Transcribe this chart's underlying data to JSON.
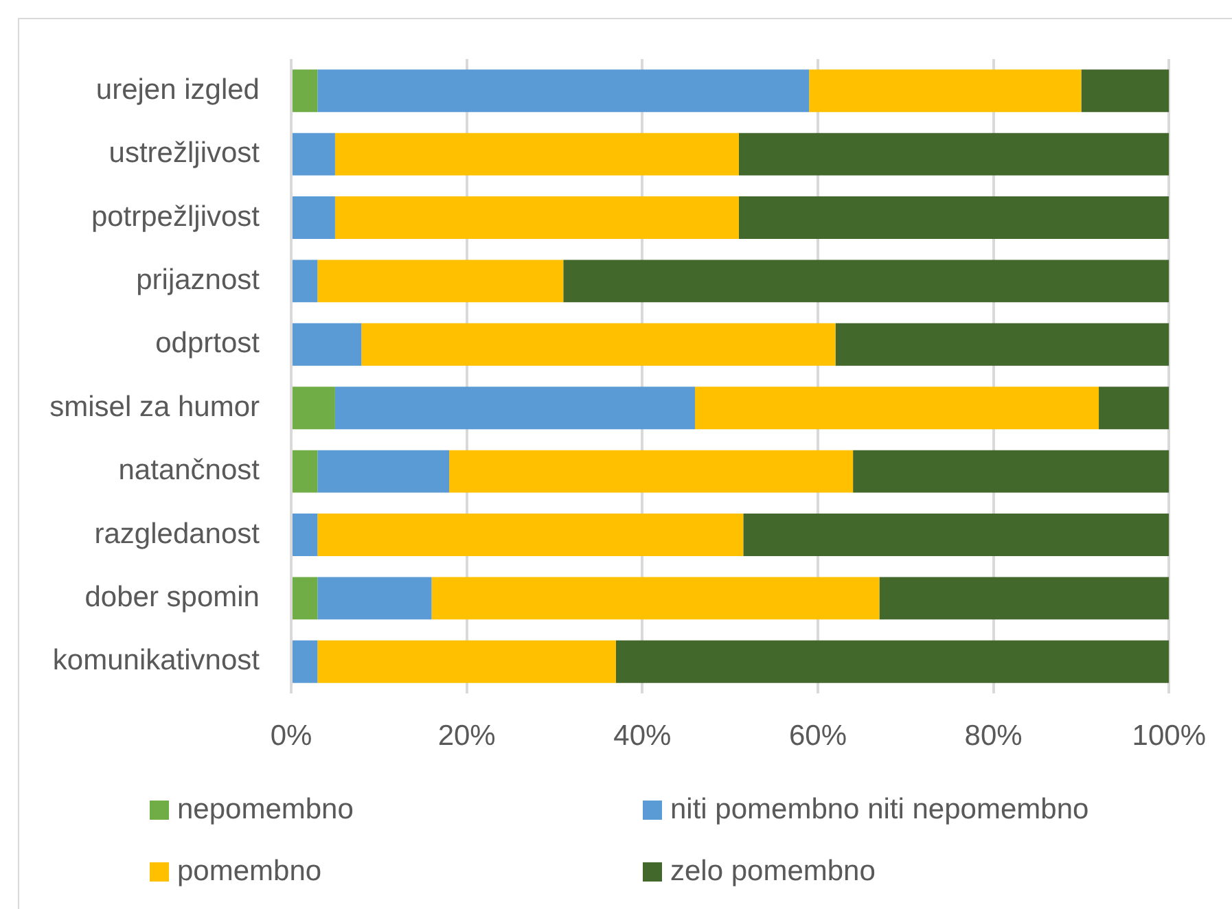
{
  "chart_data": {
    "type": "bar",
    "orientation": "horizontal",
    "stacked": true,
    "categories": [
      "urejen izgled",
      "ustrežljivost",
      "potrpežljivost",
      "prijaznost",
      "odprtost",
      "smisel za humor",
      "natančnost",
      "razgledanost",
      "dober spomin",
      "komunikativnost"
    ],
    "series": [
      {
        "name": "nepomembno",
        "color": "#70ad47",
        "values": [
          3,
          0,
          0,
          0,
          0,
          5,
          3,
          0,
          3,
          0
        ]
      },
      {
        "name": "niti pomembno niti nepomembno",
        "color": "#5b9bd5",
        "values": [
          56,
          5,
          5,
          3,
          8,
          41,
          15,
          3,
          13,
          3
        ]
      },
      {
        "name": "pomembno",
        "color": "#ffc000",
        "values": [
          31,
          46,
          46,
          28,
          54,
          46,
          46,
          48.5,
          51,
          34
        ]
      },
      {
        "name": "zelo pomembno",
        "color": "#43682b",
        "values": [
          10,
          49,
          49,
          69,
          38,
          8,
          36,
          48.5,
          33,
          63
        ]
      }
    ],
    "xlim": [
      0,
      100
    ],
    "xticks": [
      {
        "value": 0,
        "label": "0%"
      },
      {
        "value": 20,
        "label": "20%"
      },
      {
        "value": 40,
        "label": "40%"
      },
      {
        "value": 60,
        "label": "60%"
      },
      {
        "value": 80,
        "label": "80%"
      },
      {
        "value": 100,
        "label": "100%"
      }
    ],
    "grid": "x",
    "legend": "bottom"
  }
}
